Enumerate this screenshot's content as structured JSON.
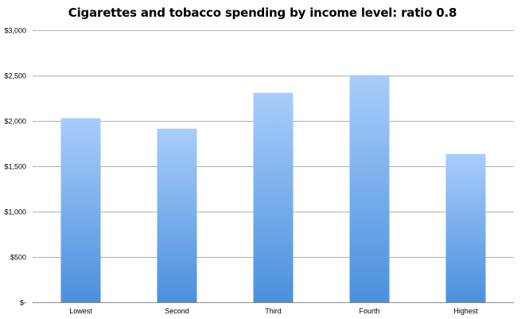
{
  "chart_data": {
    "type": "bar",
    "title": "Cigarettes and tobacco spending by income level: ratio 0.8",
    "xlabel": "",
    "ylabel": "",
    "categories": [
      "Lowest",
      "Second",
      "Third",
      "Fourth",
      "Highest"
    ],
    "series": [
      {
        "values": [
          2030,
          1915,
          2310,
          2505,
          1635
        ]
      }
    ],
    "ylim": [
      0,
      3000
    ],
    "y_ticks": [
      0,
      500,
      1000,
      1500,
      2000,
      2500,
      3000
    ],
    "y_tick_labels": [
      "$-",
      "$500",
      "$1,000",
      "$1,500",
      "$2,000",
      "$2,500",
      "$3,000"
    ],
    "grid": true,
    "legend": "none",
    "colors": {
      "bar_top": "#a9cdfb",
      "bar_bottom": "#4a90dd",
      "gridline": "#b3b3b3",
      "axis": "#8c8c8c"
    }
  }
}
